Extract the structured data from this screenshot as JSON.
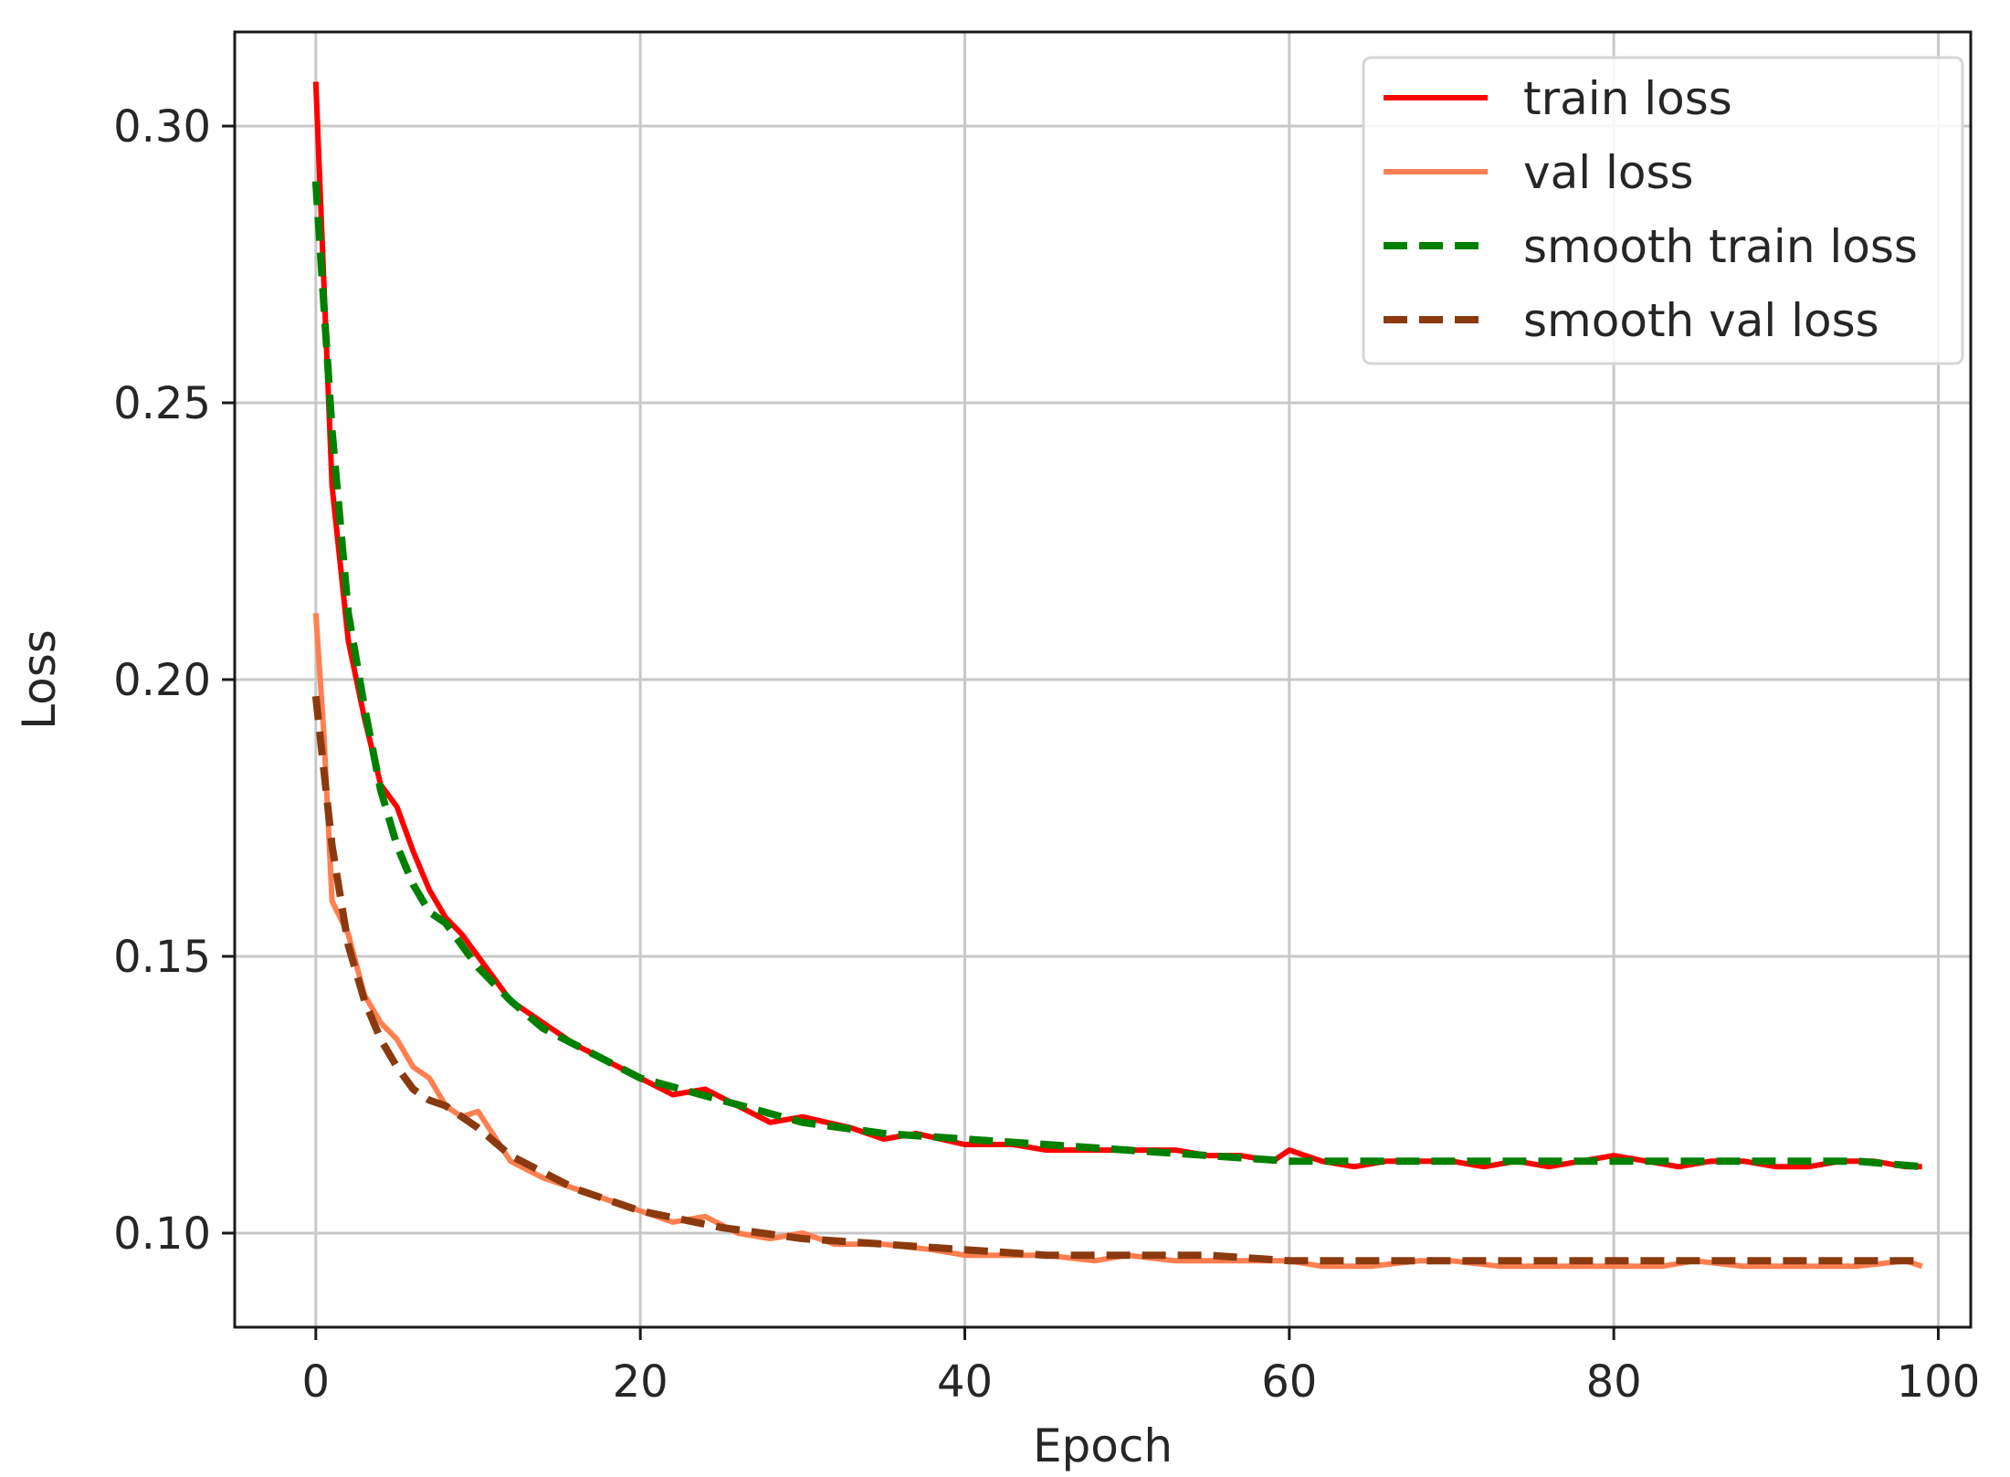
{
  "chart_data": {
    "type": "line",
    "title": "",
    "xlabel": "Epoch",
    "ylabel": "Loss",
    "xlim": [
      -5,
      102
    ],
    "ylim": [
      0.083,
      0.317
    ],
    "xticks": [
      0,
      20,
      40,
      60,
      80,
      100
    ],
    "xtick_labels": [
      "0",
      "20",
      "40",
      "60",
      "80",
      "100"
    ],
    "yticks": [
      0.1,
      0.15,
      0.2,
      0.25,
      0.3
    ],
    "ytick_labels": [
      "0.10",
      "0.15",
      "0.20",
      "0.25",
      "0.30"
    ],
    "grid": true,
    "legend_position": "top-right",
    "series": [
      {
        "name": "train loss",
        "color": "#ff0000",
        "style": "solid",
        "x": [
          0,
          1,
          2,
          3,
          4,
          5,
          6,
          7,
          8,
          9,
          10,
          12,
          14,
          16,
          18,
          20,
          22,
          24,
          26,
          28,
          30,
          33,
          35,
          37,
          40,
          43,
          45,
          48,
          50,
          53,
          55,
          57,
          59,
          60,
          62,
          64,
          66,
          68,
          70,
          72,
          74,
          76,
          78,
          80,
          82,
          84,
          86,
          88,
          90,
          92,
          94,
          96,
          98,
          99
        ],
        "y": [
          0.308,
          0.235,
          0.207,
          0.193,
          0.181,
          0.177,
          0.169,
          0.162,
          0.157,
          0.154,
          0.15,
          0.142,
          0.138,
          0.134,
          0.131,
          0.128,
          0.125,
          0.126,
          0.123,
          0.12,
          0.121,
          0.119,
          0.117,
          0.118,
          0.116,
          0.116,
          0.115,
          0.115,
          0.115,
          0.115,
          0.114,
          0.114,
          0.113,
          0.115,
          0.113,
          0.112,
          0.113,
          0.113,
          0.113,
          0.112,
          0.113,
          0.112,
          0.113,
          0.114,
          0.113,
          0.112,
          0.113,
          0.113,
          0.112,
          0.112,
          0.113,
          0.113,
          0.112,
          0.112
        ]
      },
      {
        "name": "val loss",
        "color": "#ff7f50",
        "style": "solid",
        "x": [
          0,
          0.5,
          1,
          2,
          3,
          4,
          5,
          6,
          7,
          8,
          9,
          10,
          12,
          14,
          16,
          18,
          20,
          22,
          24,
          26,
          28,
          30,
          32,
          35,
          38,
          40,
          43,
          45,
          48,
          50,
          53,
          55,
          58,
          60,
          62,
          65,
          68,
          70,
          73,
          75,
          78,
          80,
          83,
          85,
          88,
          90,
          93,
          95,
          98,
          99
        ],
        "y": [
          0.212,
          0.19,
          0.16,
          0.154,
          0.143,
          0.138,
          0.135,
          0.13,
          0.128,
          0.123,
          0.121,
          0.122,
          0.113,
          0.11,
          0.108,
          0.106,
          0.104,
          0.102,
          0.103,
          0.1,
          0.099,
          0.1,
          0.098,
          0.098,
          0.097,
          0.096,
          0.096,
          0.096,
          0.095,
          0.096,
          0.095,
          0.095,
          0.095,
          0.095,
          0.094,
          0.094,
          0.095,
          0.095,
          0.094,
          0.094,
          0.094,
          0.094,
          0.094,
          0.095,
          0.094,
          0.094,
          0.094,
          0.094,
          0.095,
          0.094
        ]
      },
      {
        "name": "smooth train loss",
        "color": "#008000",
        "style": "dashed",
        "x": [
          0,
          1,
          2,
          3,
          4,
          5,
          6,
          7,
          8,
          9,
          10,
          12,
          14,
          16,
          18,
          20,
          25,
          30,
          35,
          40,
          45,
          50,
          55,
          60,
          65,
          70,
          75,
          80,
          85,
          90,
          95,
          99
        ],
        "y": [
          0.29,
          0.245,
          0.212,
          0.195,
          0.18,
          0.17,
          0.163,
          0.158,
          0.156,
          0.152,
          0.148,
          0.142,
          0.137,
          0.134,
          0.131,
          0.128,
          0.124,
          0.12,
          0.118,
          0.117,
          0.116,
          0.115,
          0.114,
          0.113,
          0.113,
          0.113,
          0.113,
          0.113,
          0.113,
          0.113,
          0.113,
          0.112
        ]
      },
      {
        "name": "smooth val loss",
        "color": "#8b3a0f",
        "style": "dashed",
        "x": [
          0,
          1,
          2,
          3,
          4,
          5,
          6,
          7,
          8,
          9,
          10,
          12,
          14,
          16,
          18,
          20,
          25,
          30,
          35,
          40,
          45,
          50,
          55,
          60,
          65,
          70,
          75,
          80,
          85,
          90,
          95,
          99
        ],
        "y": [
          0.197,
          0.17,
          0.152,
          0.142,
          0.135,
          0.13,
          0.126,
          0.124,
          0.123,
          0.121,
          0.119,
          0.114,
          0.111,
          0.108,
          0.106,
          0.104,
          0.101,
          0.099,
          0.098,
          0.097,
          0.096,
          0.096,
          0.096,
          0.095,
          0.095,
          0.095,
          0.095,
          0.095,
          0.095,
          0.095,
          0.095,
          0.095
        ]
      }
    ]
  }
}
